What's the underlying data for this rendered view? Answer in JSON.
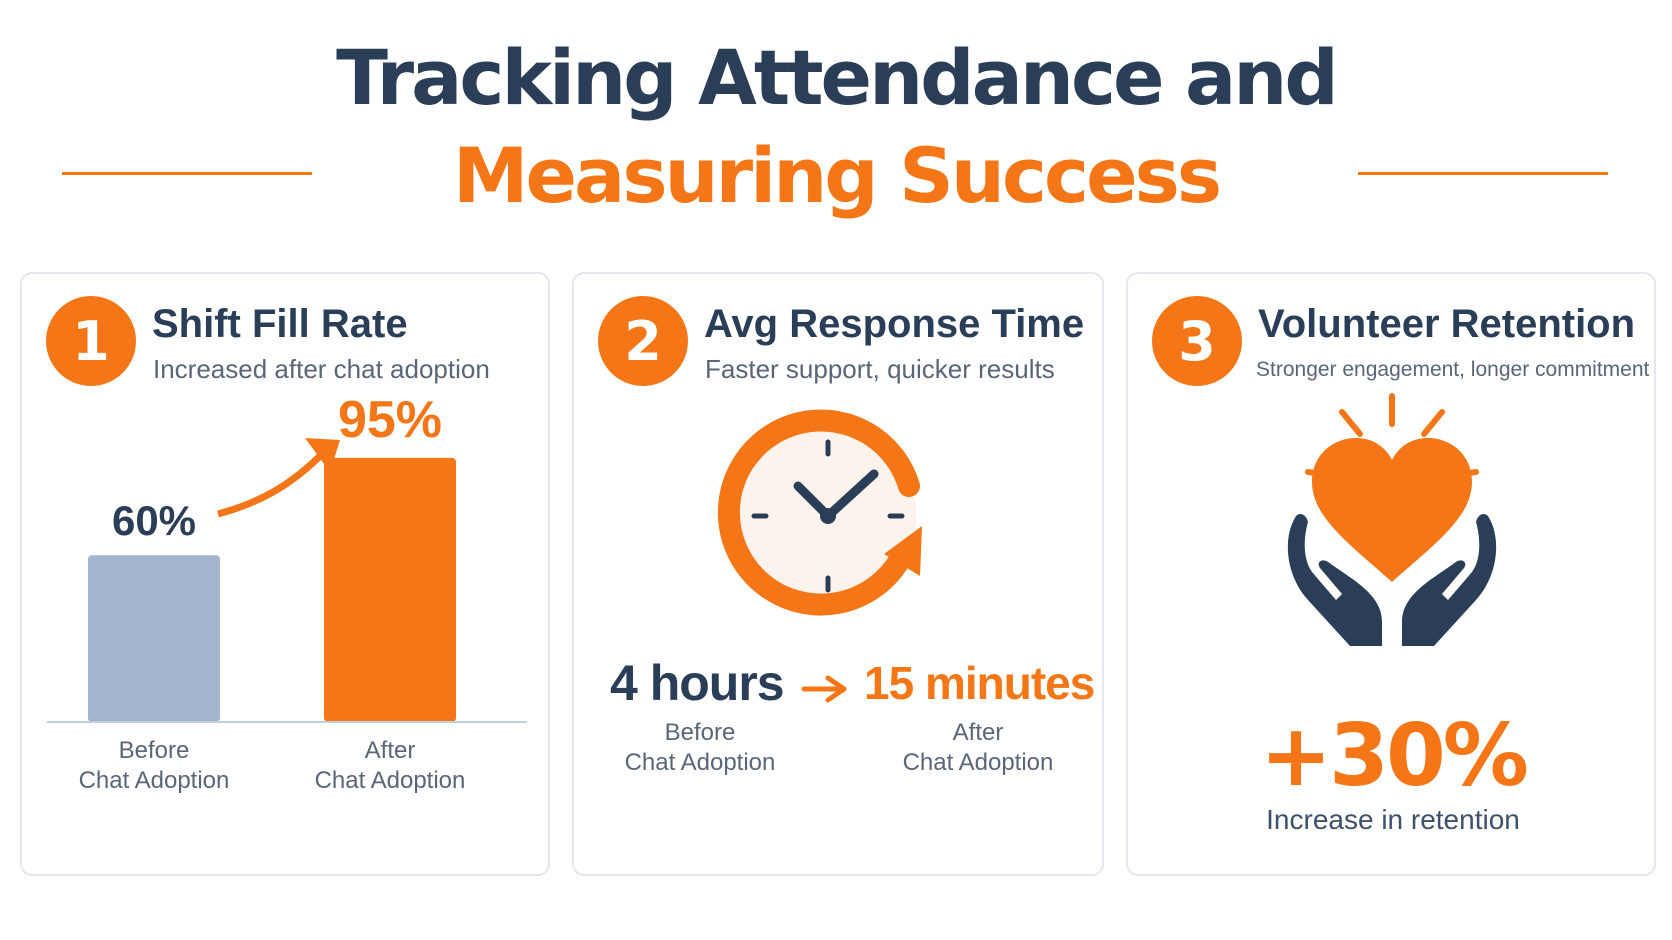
{
  "title": {
    "line1": "Tracking Attendance and",
    "line2": "Measuring Success"
  },
  "cards": [
    {
      "number": "1",
      "title": "Shift Fill Rate",
      "subtitle": "Increased after chat adoption"
    },
    {
      "number": "2",
      "title": "Avg Response Time",
      "subtitle": "Faster support, quicker results",
      "before_value": "4 hours",
      "after_value": "15 minutes",
      "before_label_line1": "Before",
      "before_label_line2": "Chat Adoption",
      "after_label_line1": "After",
      "after_label_line2": "Chat Adoption"
    },
    {
      "number": "3",
      "title": "Volunteer Retention",
      "subtitle": "Stronger engagement, longer commitment",
      "value": "+30%",
      "value_label": "Increase in retention"
    }
  ],
  "chart_data": {
    "type": "bar",
    "categories": [
      "Before Chat Adoption",
      "After Chat Adoption"
    ],
    "category_lines": [
      [
        "Before",
        "Chat Adoption"
      ],
      [
        "After",
        "Chat Adoption"
      ]
    ],
    "values": [
      60,
      95
    ],
    "value_labels": [
      "60%",
      "95%"
    ],
    "ylim": [
      0,
      100
    ],
    "colors": [
      "#a3b4cf",
      "#f47616"
    ]
  },
  "colors": {
    "navy": "#2b3e57",
    "orange": "#f47616",
    "bar_before": "#a3b4cf"
  },
  "icons": {
    "card2": "clock-icon",
    "card3": "heart-hands-icon"
  }
}
